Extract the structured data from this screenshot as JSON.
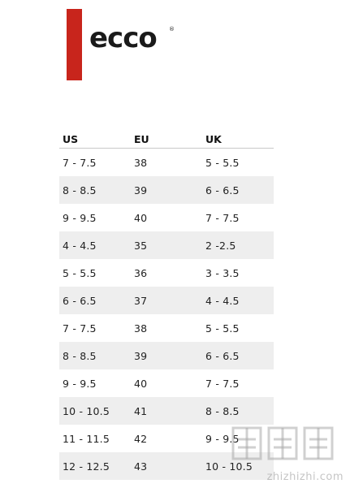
{
  "brand": {
    "name": "ecco",
    "bar_color": "#c8251c",
    "registered_mark": "®"
  },
  "table": {
    "headers": {
      "us": "US",
      "eu": "EU",
      "uk": "UK"
    },
    "rows": [
      {
        "us": "7 - 7.5",
        "eu": "38",
        "uk": "5 - 5.5"
      },
      {
        "us": "8 - 8.5",
        "eu": "39",
        "uk": "6 - 6.5"
      },
      {
        "us": "9 - 9.5",
        "eu": "40",
        "uk": "7 - 7.5"
      },
      {
        "us": "4 - 4.5",
        "eu": "35",
        "uk": "2 -2.5"
      },
      {
        "us": "5 - 5.5",
        "eu": "36",
        "uk": "3 - 3.5"
      },
      {
        "us": "6 - 6.5",
        "eu": "37",
        "uk": "4 - 4.5"
      },
      {
        "us": "7 - 7.5",
        "eu": "38",
        "uk": "5 - 5.5"
      },
      {
        "us": "8 - 8.5",
        "eu": "39",
        "uk": "6 - 6.5"
      },
      {
        "us": "9 - 9.5",
        "eu": "40",
        "uk": "7 - 7.5"
      },
      {
        "us": "10 - 10.5",
        "eu": "41",
        "uk": "8 - 8.5"
      },
      {
        "us": "11 - 11.5",
        "eu": "42",
        "uk": "9 - 9.5"
      },
      {
        "us": "12 - 12.5",
        "eu": "43",
        "uk": "10 - 10.5"
      }
    ]
  },
  "watermark": {
    "text": "zhizhizhi.com"
  }
}
